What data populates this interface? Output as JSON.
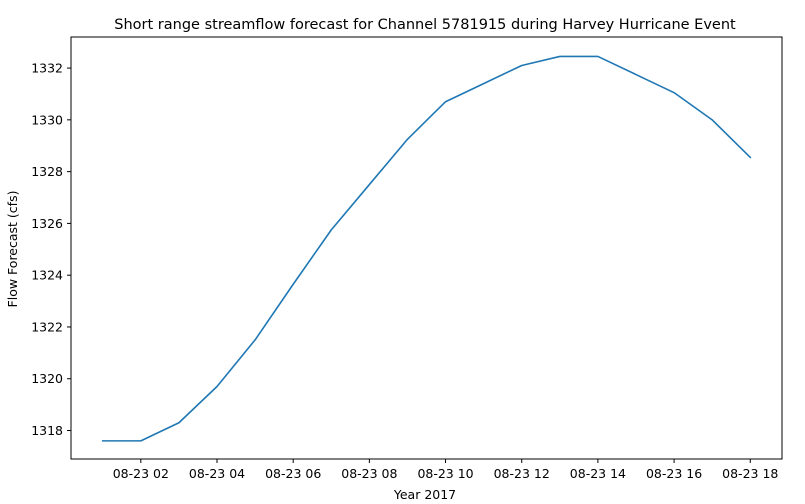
{
  "chart_data": {
    "type": "line",
    "title": "Short range streamflow forecast for Channel 5781915 during Harvey Hurricane Event",
    "xlabel": "Year 2017",
    "ylabel": "Flow Forecast (cfs)",
    "x": [
      "2017-08-23 01:00",
      "2017-08-23 02:00",
      "2017-08-23 03:00",
      "2017-08-23 04:00",
      "2017-08-23 05:00",
      "2017-08-23 06:00",
      "2017-08-23 07:00",
      "2017-08-23 08:00",
      "2017-08-23 09:00",
      "2017-08-23 10:00",
      "2017-08-23 11:00",
      "2017-08-23 12:00",
      "2017-08-23 13:00",
      "2017-08-23 14:00",
      "2017-08-23 15:00",
      "2017-08-23 16:00",
      "2017-08-23 17:00",
      "2017-08-23 18:00"
    ],
    "series": [
      {
        "values": [
          1317.6,
          1317.6,
          1318.3,
          1319.7,
          1321.5,
          1323.65,
          1325.75,
          1327.5,
          1329.25,
          1330.7,
          1331.4,
          1332.1,
          1332.45,
          1332.45,
          1331.75,
          1331.05,
          1330.0,
          1328.55
        ],
        "color": "#1f77b4"
      }
    ],
    "x_ticks": [
      "08-23 02",
      "08-23 04",
      "08-23 06",
      "08-23 08",
      "08-23 10",
      "08-23 12",
      "08-23 14",
      "08-23 16",
      "08-23 18"
    ],
    "y_ticks": [
      1318,
      1320,
      1322,
      1324,
      1326,
      1328,
      1330,
      1332
    ],
    "xlim": [
      "2017-08-23 00:10",
      "2017-08-23 18:50"
    ],
    "ylim": [
      1316.9,
      1333.2
    ],
    "grid": false,
    "legend": "none"
  }
}
